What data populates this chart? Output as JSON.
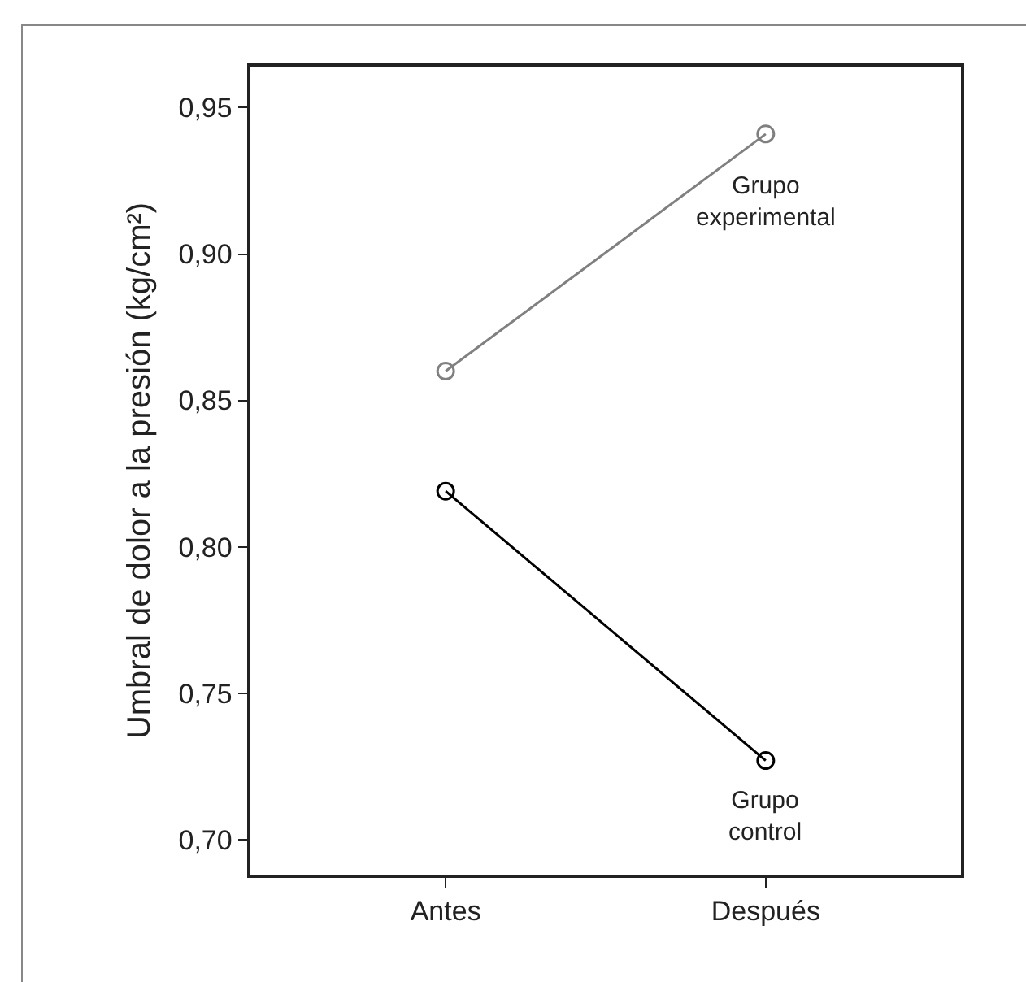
{
  "chart_data": {
    "type": "line",
    "ylabel": "Umbral de dolor a la presión (kg/cm²)",
    "categories": [
      "Antes",
      "Después"
    ],
    "series": [
      {
        "name": "Grupo experimental",
        "color": "#808080",
        "values": [
          0.86,
          0.941
        ]
      },
      {
        "name": "Grupo control",
        "color": "#000000",
        "values": [
          0.819,
          0.727
        ]
      }
    ],
    "ylim": [
      0.688,
      0.964
    ],
    "yticks": [
      {
        "value": 0.7,
        "label": "0,70"
      },
      {
        "value": 0.75,
        "label": "0,75"
      },
      {
        "value": 0.8,
        "label": "0,80"
      },
      {
        "value": 0.85,
        "label": "0,85"
      },
      {
        "value": 0.9,
        "label": "0,90"
      },
      {
        "value": 0.95,
        "label": "0,95"
      }
    ],
    "marker": "circle",
    "line_style": "solid",
    "grid": false,
    "legend": false
  }
}
